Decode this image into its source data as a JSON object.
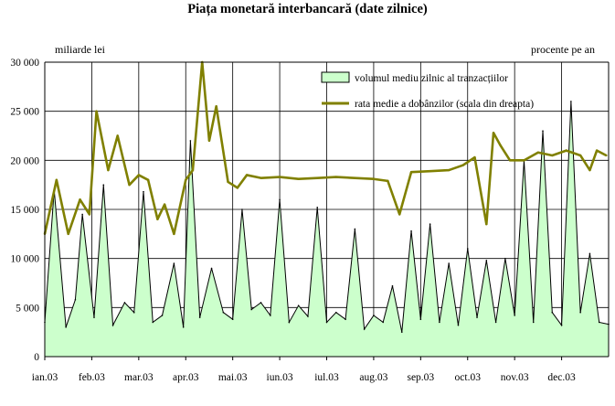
{
  "chart_data": {
    "type": "area",
    "title": "Piața monetară interbancară (date zilnice)",
    "ylabel_left": "miliarde lei",
    "ylabel_right": "procente pe an",
    "ylim_left": [
      0,
      30000
    ],
    "ylim_right": [
      0,
      30
    ],
    "yticks_left": [
      "0",
      "5 000",
      "10 000",
      "15 000",
      "20 000",
      "25 000",
      "30 000"
    ],
    "x_ticks": [
      "ian.03",
      "feb.03",
      "mar.03",
      "apr.03",
      "mai.03",
      "iun.03",
      "iul.03",
      "aug.03",
      "sep.03",
      "oct.03",
      "nov.03",
      "dec.03"
    ],
    "legend_position": "top-right",
    "grid": true,
    "series": [
      {
        "name": "volumul mediu zilnic al tranzacțiilor",
        "kind": "area",
        "axis": "left",
        "color_fill": "#ccffcc",
        "color_line": "#000000",
        "x": [
          0,
          0.2,
          0.45,
          0.65,
          0.8,
          1.05,
          1.25,
          1.45,
          1.7,
          1.9,
          2.1,
          2.3,
          2.5,
          2.75,
          2.95,
          3.1,
          3.3,
          3.55,
          3.8,
          4.0,
          4.2,
          4.4,
          4.6,
          4.8,
          5.0,
          5.2,
          5.4,
          5.6,
          5.8,
          6.0,
          6.2,
          6.4,
          6.6,
          6.8,
          7.0,
          7.2,
          7.4,
          7.6,
          7.8,
          8.0,
          8.2,
          8.4,
          8.6,
          8.8,
          9.0,
          9.2,
          9.4,
          9.6,
          9.8,
          10.0,
          10.2,
          10.4,
          10.6,
          10.8,
          11.0,
          11.2,
          11.4,
          11.6,
          11.8,
          12.0
        ],
        "values": [
          3500,
          17000,
          3000,
          5800,
          14500,
          4000,
          17500,
          3200,
          5500,
          4500,
          16800,
          3500,
          4200,
          9500,
          3000,
          22000,
          4000,
          9000,
          4500,
          3800,
          15000,
          4800,
          5500,
          4200,
          16000,
          3500,
          5200,
          4100,
          15200,
          3500,
          4500,
          3800,
          13000,
          2800,
          4200,
          3500,
          7200,
          2500,
          12800,
          3800,
          13500,
          3500,
          9500,
          3200,
          11000,
          4000,
          9800,
          3500,
          10000,
          4200,
          20000,
          3500,
          23000,
          4500,
          3200,
          26000,
          4500,
          10500,
          3500,
          3300
        ]
      },
      {
        "name": "rata medie a dobânzilor (scala din dreapta)",
        "kind": "line",
        "axis": "right",
        "color": "#808000",
        "x": [
          0,
          0.25,
          0.5,
          0.75,
          0.95,
          1.1,
          1.35,
          1.55,
          1.8,
          2.0,
          2.2,
          2.4,
          2.55,
          2.75,
          3.0,
          3.15,
          3.35,
          3.5,
          3.65,
          3.9,
          4.1,
          4.3,
          4.6,
          5.0,
          5.4,
          5.8,
          6.2,
          6.6,
          7.0,
          7.3,
          7.55,
          7.8,
          8.2,
          8.6,
          8.9,
          9.15,
          9.4,
          9.55,
          9.7,
          9.9,
          10.2,
          10.5,
          10.8,
          11.1,
          11.4,
          11.6,
          11.75,
          11.95
        ],
        "values": [
          12.5,
          18,
          12.5,
          16,
          14.5,
          25,
          19,
          22.5,
          17.5,
          18.5,
          18,
          14,
          15.5,
          12.5,
          18,
          19,
          30,
          22,
          25.5,
          17.8,
          17.2,
          18.5,
          18.2,
          18.3,
          18.1,
          18.2,
          18.3,
          18.2,
          18.1,
          17.9,
          14.5,
          18.8,
          18.9,
          19,
          19.5,
          20.3,
          13.5,
          22.8,
          21.5,
          20,
          20,
          20.8,
          20.5,
          21,
          20.5,
          19,
          21,
          20.5
        ]
      }
    ]
  }
}
